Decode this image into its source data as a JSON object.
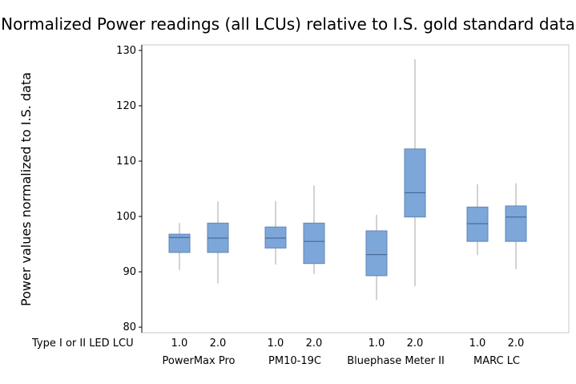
{
  "chart_data": {
    "type": "boxplot",
    "title": "Normalized Power readings (all LCUs) relative to I.S. gold standard data",
    "ylabel": "Power values normalized to I.S. data",
    "xlabel": "",
    "ylim": [
      79,
      131
    ],
    "yticks": [
      80,
      90,
      100,
      110,
      120,
      130
    ],
    "x_row_label": "Type I or II LED LCU",
    "box_color": "#7da7d9",
    "box_edge_color": "#5f86b8",
    "groups": [
      {
        "name": "PowerMax Pro",
        "boxes": [
          {
            "type": "1.0",
            "min": 90.3,
            "q1": 93.5,
            "median": 96.2,
            "q3": 96.8,
            "max": 98.8
          },
          {
            "type": "2.0",
            "min": 87.9,
            "q1": 93.5,
            "median": 96.1,
            "q3": 98.8,
            "max": 102.7
          }
        ]
      },
      {
        "name": "PM10-19C",
        "boxes": [
          {
            "type": "1.0",
            "min": 91.3,
            "q1": 94.3,
            "median": 96.1,
            "q3": 98.1,
            "max": 102.8
          },
          {
            "type": "2.0",
            "min": 89.6,
            "q1": 91.5,
            "median": 95.5,
            "q3": 98.8,
            "max": 105.6
          }
        ]
      },
      {
        "name": "Bluephase Meter II",
        "boxes": [
          {
            "type": "1.0",
            "min": 84.9,
            "q1": 89.3,
            "median": 93.1,
            "q3": 97.4,
            "max": 100.3
          },
          {
            "type": "2.0",
            "min": 87.4,
            "q1": 99.9,
            "median": 104.3,
            "q3": 112.2,
            "max": 128.4
          }
        ]
      },
      {
        "name": "MARC LC",
        "boxes": [
          {
            "type": "1.0",
            "min": 93.0,
            "q1": 95.5,
            "median": 98.7,
            "q3": 101.7,
            "max": 105.8
          },
          {
            "type": "2.0",
            "min": 90.5,
            "q1": 95.5,
            "median": 99.9,
            "q3": 101.9,
            "max": 106.0
          }
        ]
      }
    ]
  }
}
